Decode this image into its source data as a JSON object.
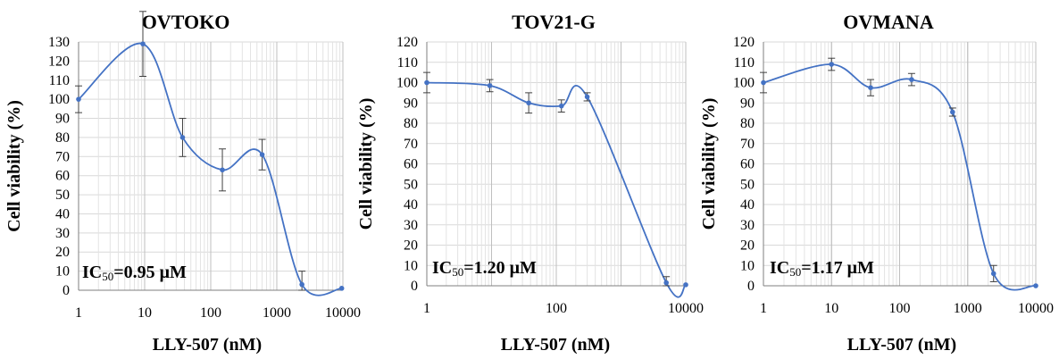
{
  "chart_data": [
    {
      "type": "line",
      "title": "OVTOKO",
      "xlabel": "LLY-507 (nM)",
      "ylabel": "Cell  viability  (%)",
      "x_scale": "log",
      "xlim": [
        1,
        10000
      ],
      "ylim": [
        0,
        130
      ],
      "x_ticks": [
        "1",
        "10",
        "100",
        "1000",
        "10000"
      ],
      "y_ticks": [
        "0",
        "10",
        "20",
        "30",
        "40",
        "50",
        "60",
        "70",
        "80",
        "90",
        "100",
        "110",
        "120",
        "130"
      ],
      "annotation": {
        "prefix": "IC",
        "subscript": "50",
        "value": "=0.95 μM"
      },
      "grid": true,
      "color": "#4472C4",
      "series": [
        {
          "x": [
            1,
            9.4,
            37.5,
            150,
            600,
            2400,
            9600
          ],
          "y": [
            100,
            129,
            80,
            63,
            71,
            3,
            1
          ],
          "err": [
            7,
            17,
            10,
            11,
            8,
            7,
            0
          ]
        }
      ]
    },
    {
      "type": "line",
      "title": "TOV21-G",
      "xlabel": "LLY-507 (nM)",
      "ylabel": "Cell  viability  (%)",
      "x_scale": "log",
      "xlim": [
        1,
        10000
      ],
      "ylim": [
        0,
        120
      ],
      "x_ticks": [
        "1",
        "100",
        "10000"
      ],
      "y_ticks": [
        "0",
        "10",
        "20",
        "30",
        "40",
        "50",
        "60",
        "70",
        "80",
        "90",
        "100",
        "110",
        "120"
      ],
      "annotation": {
        "prefix": "IC",
        "subscript": "50",
        "value": "=1.20 μM"
      },
      "grid": true,
      "color": "#4472C4",
      "series": [
        {
          "x": [
            1,
            9.4,
            37.5,
            120,
            300,
            5000,
            10000
          ],
          "y": [
            100,
            98.5,
            90,
            88.5,
            93,
            1.5,
            0.5
          ],
          "err": [
            5,
            3,
            5,
            3,
            2,
            3,
            0
          ]
        }
      ]
    },
    {
      "type": "line",
      "title": "OVMANA",
      "xlabel": "LLY-507 (nM)",
      "ylabel": "Cell  viability  (%)",
      "x_scale": "log",
      "xlim": [
        1,
        10000
      ],
      "ylim": [
        0,
        120
      ],
      "x_ticks": [
        "1",
        "10",
        "100",
        "1000",
        "10000"
      ],
      "y_ticks": [
        "0",
        "10",
        "20",
        "30",
        "40",
        "50",
        "60",
        "70",
        "80",
        "90",
        "100",
        "110",
        "120"
      ],
      "annotation": {
        "prefix": "IC",
        "subscript": "50",
        "value": "=1.17 μM"
      },
      "grid": true,
      "color": "#4472C4",
      "series": [
        {
          "x": [
            1,
            10,
            37.5,
            150,
            600,
            2400,
            10000
          ],
          "y": [
            100,
            109,
            97.5,
            101.5,
            85.5,
            6,
            0
          ],
          "err": [
            5,
            3,
            4,
            3,
            2,
            4,
            0
          ]
        }
      ]
    }
  ]
}
